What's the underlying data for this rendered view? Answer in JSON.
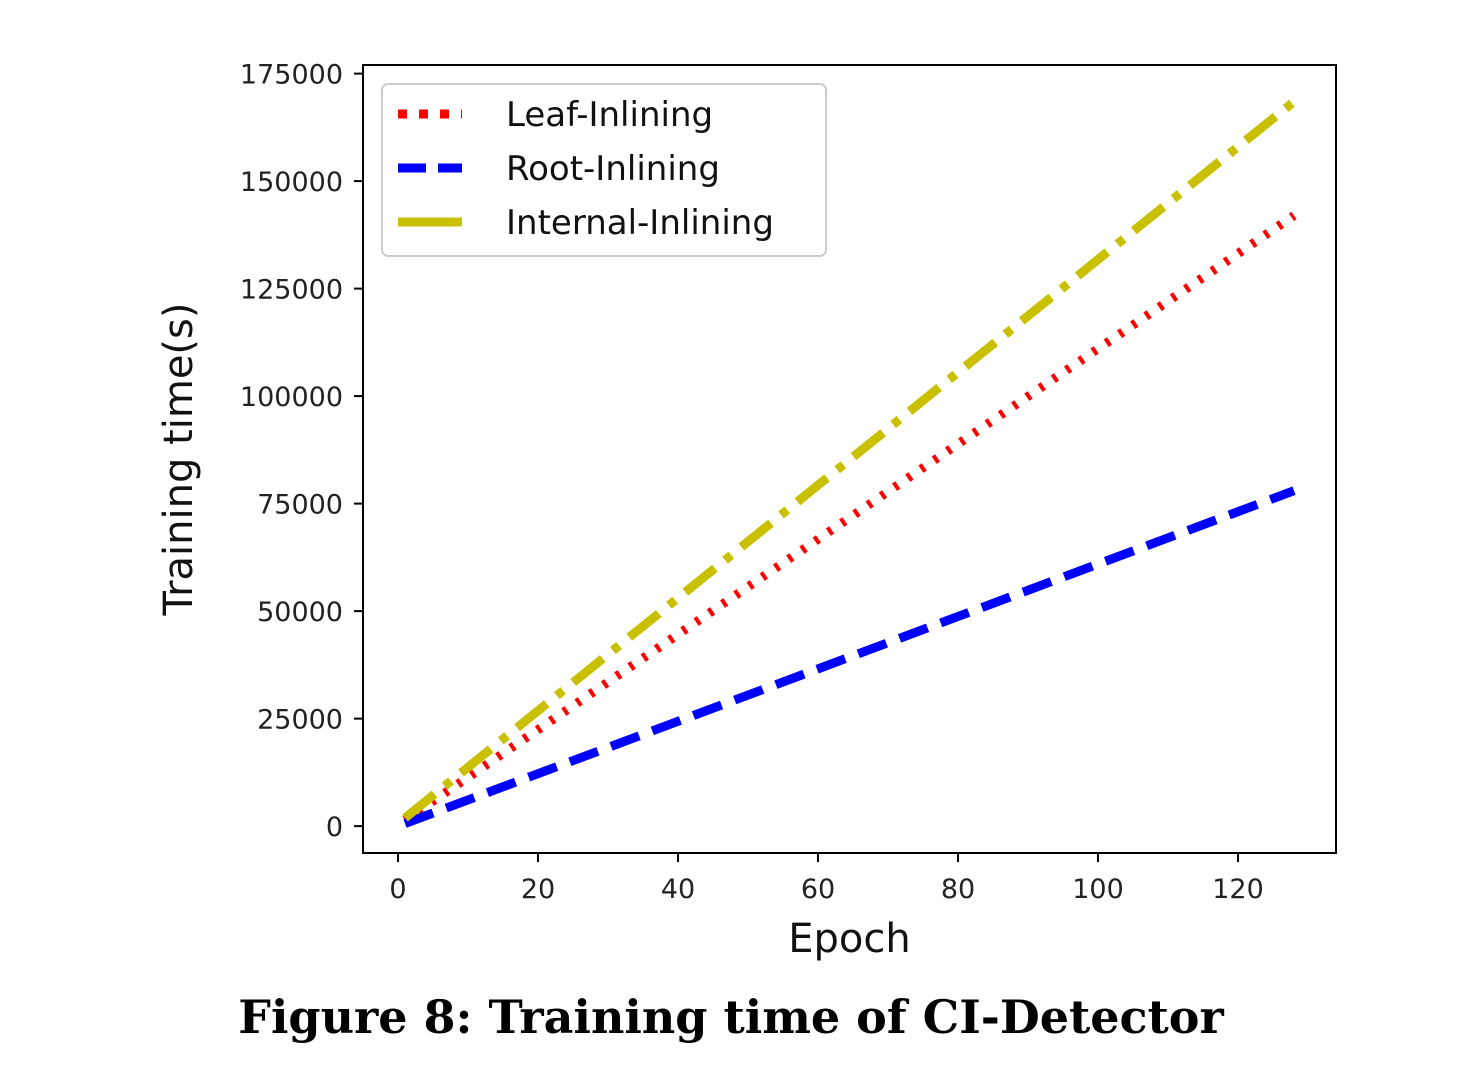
{
  "caption": "Figure 8: Training time of CI-Detector",
  "chart_data": {
    "type": "line",
    "title": "",
    "xlabel": "Epoch",
    "ylabel": "Training time(s)",
    "xlim": [
      -5,
      134
    ],
    "ylim": [
      -6250,
      177000
    ],
    "x_ticks": [
      0,
      20,
      40,
      60,
      80,
      100,
      120
    ],
    "x_tick_labels": [
      "0",
      "20",
      "40",
      "60",
      "80",
      "100",
      "120"
    ],
    "y_ticks": [
      0,
      25000,
      50000,
      75000,
      100000,
      125000,
      150000,
      175000
    ],
    "y_tick_labels": [
      "0",
      "25000",
      "50000",
      "75000",
      "100000",
      "125000",
      "150000",
      "175000"
    ],
    "grid": false,
    "legend_position": "top-left",
    "series": [
      {
        "name": "Leaf-Inlining",
        "style": "dotted",
        "color": "#ff0000",
        "x": [
          1,
          128
        ],
        "y": [
          1400,
          142000
        ]
      },
      {
        "name": "Root-Inlining",
        "style": "dashed",
        "color": "#0000ff",
        "x": [
          1,
          128
        ],
        "y": [
          600,
          78000
        ]
      },
      {
        "name": "Internal-Inlining",
        "style": "dashdot",
        "color": "#c8c000",
        "x": [
          1,
          128
        ],
        "y": [
          1900,
          168500
        ]
      }
    ]
  }
}
